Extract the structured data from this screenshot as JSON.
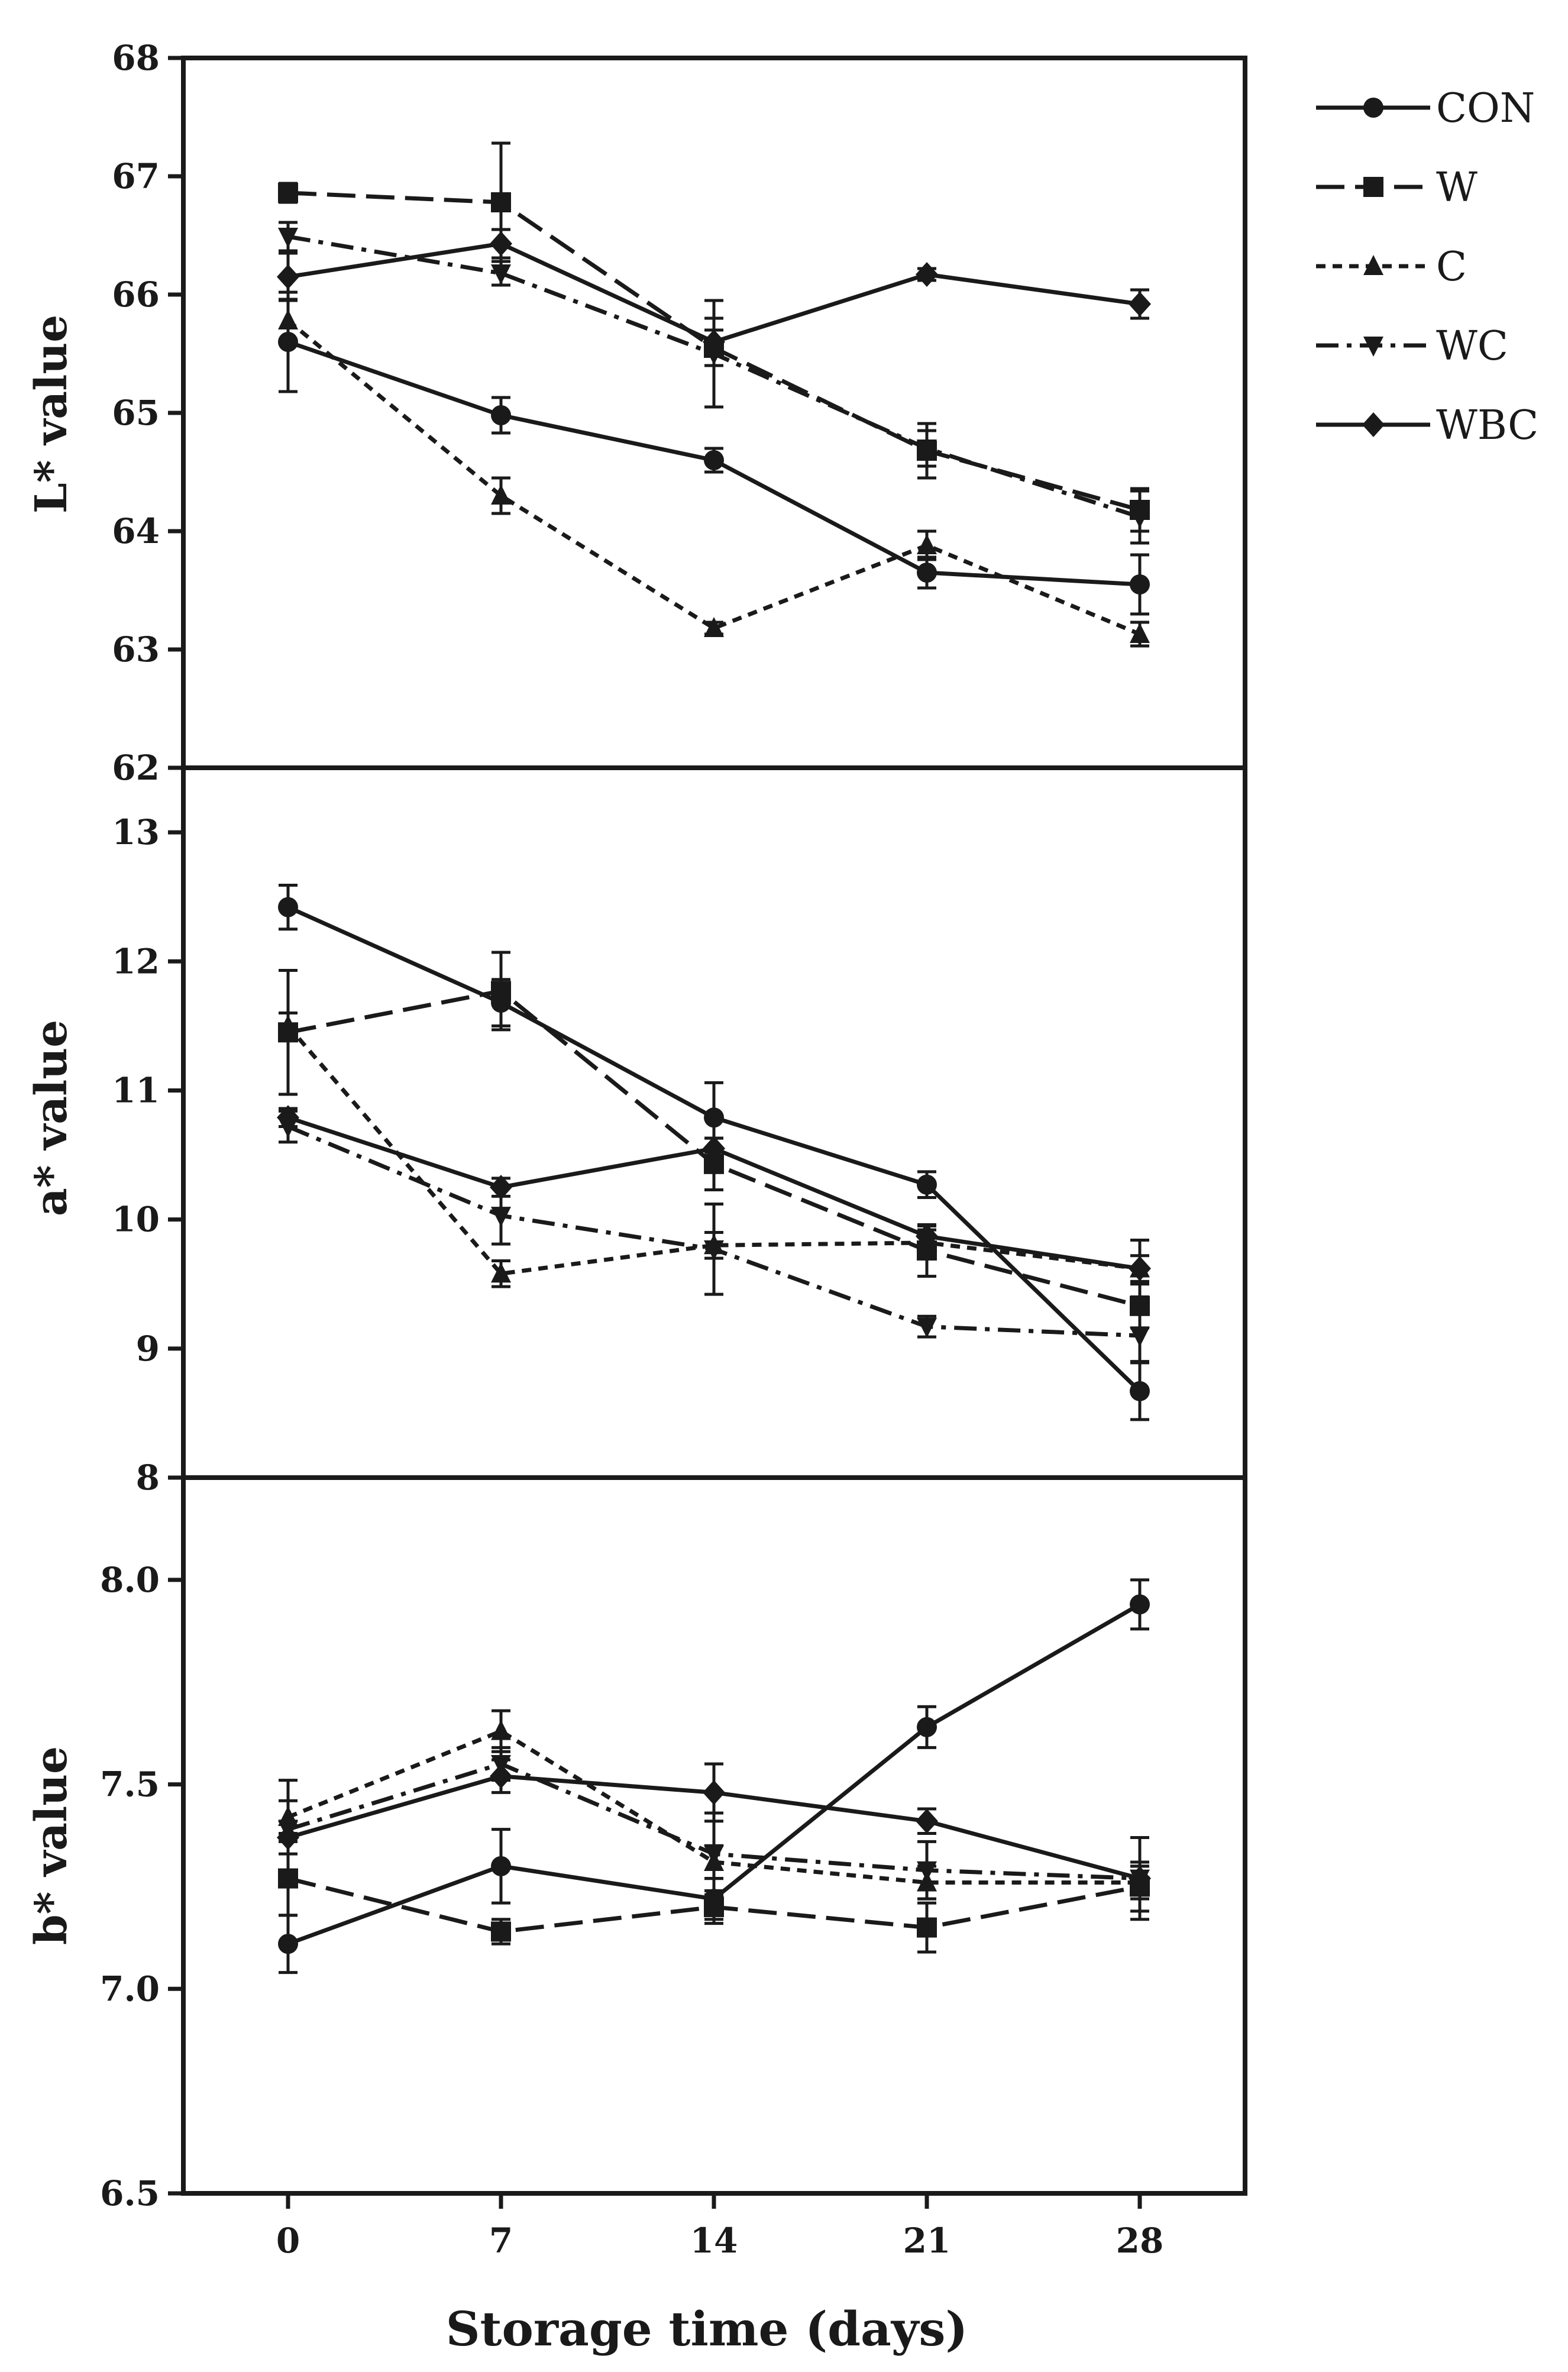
{
  "chart_data": [
    {
      "type": "line",
      "ylabel": "L* value",
      "xlabel": "",
      "ylim": [
        62,
        68
      ],
      "y_ticks": [
        "62",
        "63",
        "64",
        "65",
        "66",
        "67",
        "68"
      ],
      "x": [
        0,
        7,
        14,
        21,
        28
      ],
      "series": [
        {
          "name": "CON",
          "values": [
            65.6,
            64.98,
            64.6,
            63.65,
            63.55
          ],
          "errors": [
            0.42,
            0.15,
            0.1,
            0.13,
            0.25
          ]
        },
        {
          "name": "W",
          "values": [
            66.86,
            66.78,
            65.55,
            64.68,
            64.18
          ],
          "errors": [
            0.08,
            0.5,
            0.15,
            0.23,
            0.18
          ]
        },
        {
          "name": "C",
          "values": [
            65.78,
            64.3,
            63.18,
            63.88,
            63.13
          ],
          "errors": [
            0.18,
            0.15,
            0.05,
            0.12,
            0.1
          ]
        },
        {
          "name": "WC",
          "values": [
            66.49,
            66.18,
            65.5,
            64.7,
            64.12
          ],
          "errors": [
            0.12,
            0.1,
            0.45,
            0.15,
            0.22
          ]
        },
        {
          "name": "WBC",
          "values": [
            66.15,
            66.43,
            65.6,
            66.17,
            65.92
          ],
          "errors": [
            0.2,
            0.12,
            0.2,
            0.05,
            0.12
          ]
        }
      ]
    },
    {
      "type": "line",
      "ylabel": "a* value",
      "xlabel": "",
      "ylim": [
        8,
        13.5
      ],
      "y_ticks": [
        "8",
        "9",
        "10",
        "11",
        "12",
        "13"
      ],
      "x": [
        0,
        7,
        14,
        21,
        28
      ],
      "series": [
        {
          "name": "CON",
          "values": [
            12.42,
            11.68,
            10.79,
            10.27,
            8.67
          ],
          "errors": [
            0.17,
            0.18,
            0.27,
            0.1,
            0.22
          ]
        },
        {
          "name": "W",
          "values": [
            11.45,
            11.77,
            10.43,
            9.76,
            9.33
          ],
          "errors": [
            0.48,
            0.3,
            0.2,
            0.2,
            0.17
          ]
        },
        {
          "name": "C",
          "values": [
            11.5,
            9.58,
            9.8,
            9.82,
            9.62
          ],
          "errors": [
            0.1,
            0.1,
            0.1,
            0.1,
            0.1
          ]
        },
        {
          "name": "WC",
          "values": [
            10.72,
            10.03,
            9.77,
            9.17,
            9.1
          ],
          "errors": [
            0.12,
            0.22,
            0.35,
            0.08,
            0.2
          ]
        },
        {
          "name": "WBC",
          "values": [
            10.79,
            10.25,
            10.55,
            9.87,
            9.62
          ],
          "errors": [
            0.07,
            0.07,
            0.08,
            0.08,
            0.22
          ]
        }
      ]
    },
    {
      "type": "line",
      "ylabel": "b* value",
      "xlabel": "Storage time (days)",
      "ylim": [
        6.5,
        8.25
      ],
      "y_ticks": [
        "6.5",
        "7.0",
        "7.5",
        "8.0"
      ],
      "x_ticks": [
        "0",
        "7",
        "14",
        "21",
        "28"
      ],
      "x": [
        0,
        7,
        14,
        21,
        28
      ],
      "series": [
        {
          "name": "CON",
          "values": [
            7.11,
            7.3,
            7.22,
            7.64,
            7.94
          ],
          "errors": [
            0.07,
            0.09,
            0.05,
            0.05,
            0.06
          ]
        },
        {
          "name": "W",
          "values": [
            7.27,
            7.14,
            7.2,
            7.15,
            7.25
          ],
          "errors": [
            0.09,
            0.03,
            0.04,
            0.06,
            0.06
          ]
        },
        {
          "name": "C",
          "values": [
            7.42,
            7.63,
            7.31,
            7.26,
            7.26
          ],
          "errors": [
            0.04,
            0.05,
            0.04,
            0.04,
            0.04
          ]
        },
        {
          "name": "WC",
          "values": [
            7.39,
            7.55,
            7.33,
            7.29,
            7.27
          ],
          "errors": [
            0.12,
            0.04,
            0.1,
            0.07,
            0.1
          ]
        },
        {
          "name": "WBC",
          "values": [
            7.37,
            7.52,
            7.48,
            7.41,
            7.27
          ],
          "errors": [
            0.04,
            0.04,
            0.07,
            0.03,
            0.03
          ]
        }
      ]
    }
  ],
  "legend": {
    "placement": "top-right",
    "entries": [
      "CON",
      "W",
      "C",
      "WC",
      "WBC"
    ]
  },
  "colors": {
    "ink": "#1a1a1a",
    "background": "#ffffff"
  }
}
